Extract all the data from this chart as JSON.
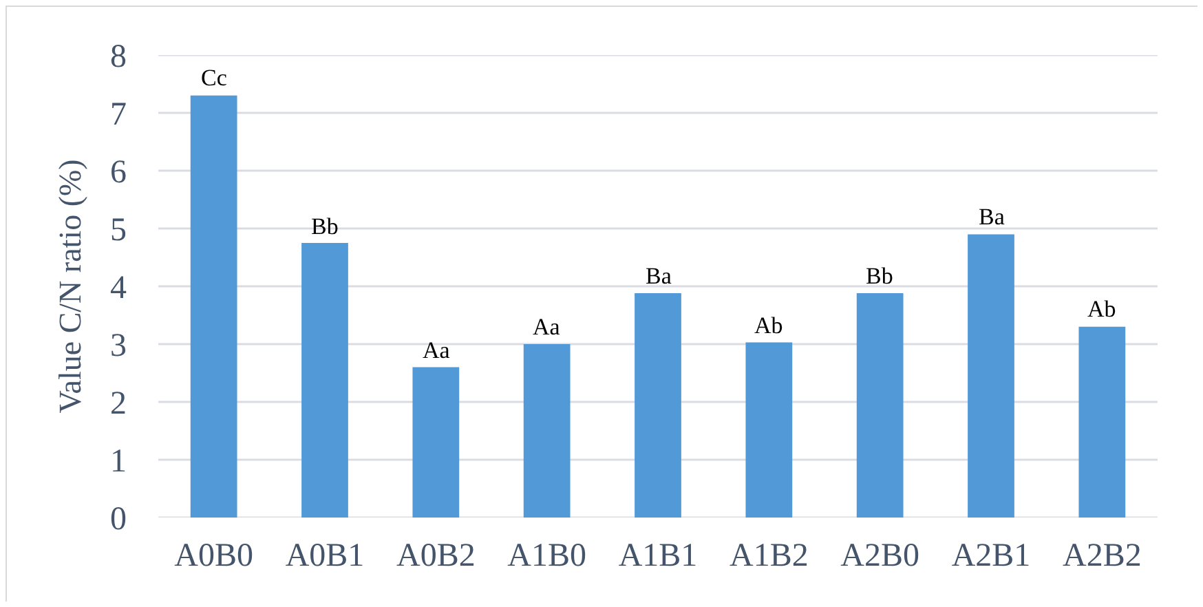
{
  "chart_data": {
    "type": "bar",
    "ylabel": "Value C/N ratio (%)",
    "categories": [
      "A0B0",
      "A0B1",
      "A0B2",
      "A1B0",
      "A1B1",
      "A1B2",
      "A2B0",
      "A2B1",
      "A2B2"
    ],
    "values": [
      7.3,
      4.75,
      2.6,
      3.0,
      3.88,
      3.03,
      3.88,
      4.9,
      3.3
    ],
    "color": "#5299d8",
    "ylim": [
      0,
      8
    ],
    "yticks": [
      0,
      1,
      2,
      3,
      4,
      5,
      6,
      7,
      8
    ],
    "grid": "y",
    "annotations": [
      {
        "text": "Cc",
        "x": "A0B0",
        "y": 7.3
      },
      {
        "text": "Bb",
        "x": "A0B1",
        "y": 4.75
      },
      {
        "text": "Aa",
        "x": "A0B2",
        "y": 2.6
      },
      {
        "text": "Aa",
        "x": "A1B0",
        "y": 3.0
      },
      {
        "text": "Ba",
        "x": "A1B1",
        "y": 3.88
      },
      {
        "text": "Ab",
        "x": "A1B2",
        "y": 3.03
      },
      {
        "text": "Bb",
        "x": "A2B0",
        "y": 3.88
      },
      {
        "text": "Ba",
        "x": "A2B1",
        "y": 4.9
      },
      {
        "text": "Ab",
        "x": "A2B2",
        "y": 3.3
      }
    ]
  }
}
